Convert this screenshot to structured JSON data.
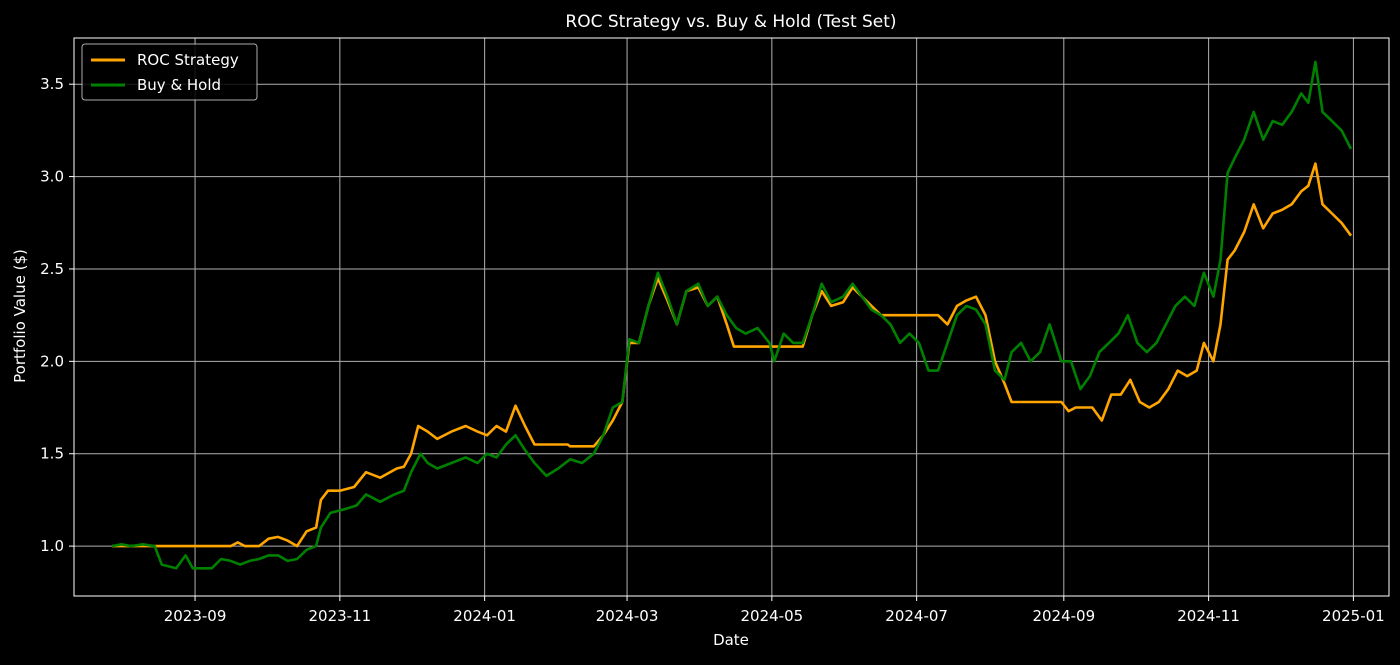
{
  "chart_data": {
    "type": "line",
    "title": "ROC Strategy vs. Buy & Hold (Test Set)",
    "xlabel": "Date",
    "ylabel": "Portfolio Value ($)",
    "x_ticks": [
      {
        "date": "2023-09-01",
        "label": "2023-09"
      },
      {
        "date": "2023-11-01",
        "label": "2023-11"
      },
      {
        "date": "2024-01-01",
        "label": "2024-01"
      },
      {
        "date": "2024-03-01",
        "label": "2024-03"
      },
      {
        "date": "2024-05-01",
        "label": "2024-05"
      },
      {
        "date": "2024-07-01",
        "label": "2024-07"
      },
      {
        "date": "2024-09-01",
        "label": "2024-09"
      },
      {
        "date": "2024-11-01",
        "label": "2024-11"
      },
      {
        "date": "2025-01-01",
        "label": "2025-01"
      }
    ],
    "y_ticks": [
      {
        "value": 1.0,
        "label": "1.0"
      },
      {
        "value": 1.5,
        "label": "1.5"
      },
      {
        "value": 2.0,
        "label": "2.0"
      },
      {
        "value": 2.5,
        "label": "2.5"
      },
      {
        "value": 3.0,
        "label": "3.0"
      },
      {
        "value": 3.5,
        "label": "3.5"
      }
    ],
    "xlim": [
      "2023-07-12",
      "2025-01-16"
    ],
    "ylim": [
      0.73,
      3.75
    ],
    "grid": true,
    "legend_position": "top-left",
    "colors": {
      "background": "#000000",
      "axes": "#ffffff",
      "grid": "#b0b0b0"
    },
    "series": [
      {
        "name": "ROC Strategy",
        "color": "#ffa500",
        "points": [
          [
            "2023-07-28",
            1.0
          ],
          [
            "2023-08-05",
            1.0
          ],
          [
            "2023-08-20",
            1.0
          ],
          [
            "2023-09-05",
            1.0
          ],
          [
            "2023-09-16",
            1.0
          ],
          [
            "2023-09-19",
            1.02
          ],
          [
            "2023-09-22",
            1.0
          ],
          [
            "2023-09-28",
            1.0
          ],
          [
            "2023-10-02",
            1.04
          ],
          [
            "2023-10-06",
            1.05
          ],
          [
            "2023-10-10",
            1.03
          ],
          [
            "2023-10-14",
            1.0
          ],
          [
            "2023-10-18",
            1.08
          ],
          [
            "2023-10-22",
            1.1
          ],
          [
            "2023-10-24",
            1.25
          ],
          [
            "2023-10-27",
            1.3
          ],
          [
            "2023-11-01",
            1.3
          ],
          [
            "2023-11-07",
            1.32
          ],
          [
            "2023-11-12",
            1.4
          ],
          [
            "2023-11-18",
            1.37
          ],
          [
            "2023-11-25",
            1.42
          ],
          [
            "2023-11-28",
            1.43
          ],
          [
            "2023-12-01",
            1.5
          ],
          [
            "2023-12-04",
            1.65
          ],
          [
            "2023-12-08",
            1.62
          ],
          [
            "2023-12-12",
            1.58
          ],
          [
            "2023-12-18",
            1.62
          ],
          [
            "2023-12-24",
            1.65
          ],
          [
            "2023-12-29",
            1.62
          ],
          [
            "2024-01-02",
            1.6
          ],
          [
            "2024-01-06",
            1.65
          ],
          [
            "2024-01-10",
            1.62
          ],
          [
            "2024-01-14",
            1.76
          ],
          [
            "2024-01-18",
            1.65
          ],
          [
            "2024-01-22",
            1.55
          ],
          [
            "2024-02-05",
            1.55
          ],
          [
            "2024-02-06",
            1.54
          ],
          [
            "2024-02-16",
            1.54
          ],
          [
            "2024-02-20",
            1.6
          ],
          [
            "2024-02-24",
            1.68
          ],
          [
            "2024-02-28",
            1.78
          ],
          [
            "2024-03-02",
            2.1
          ],
          [
            "2024-03-06",
            2.1
          ],
          [
            "2024-03-10",
            2.3
          ],
          [
            "2024-03-14",
            2.45
          ],
          [
            "2024-03-18",
            2.33
          ],
          [
            "2024-03-22",
            2.2
          ],
          [
            "2024-03-26",
            2.38
          ],
          [
            "2024-03-31",
            2.4
          ],
          [
            "2024-04-04",
            2.3
          ],
          [
            "2024-04-08",
            2.35
          ],
          [
            "2024-04-12",
            2.2
          ],
          [
            "2024-04-15",
            2.08
          ],
          [
            "2024-05-14",
            2.08
          ],
          [
            "2024-05-18",
            2.25
          ],
          [
            "2024-05-22",
            2.38
          ],
          [
            "2024-05-26",
            2.3
          ],
          [
            "2024-05-31",
            2.32
          ],
          [
            "2024-06-04",
            2.4
          ],
          [
            "2024-06-08",
            2.35
          ],
          [
            "2024-06-12",
            2.3
          ],
          [
            "2024-06-16",
            2.25
          ],
          [
            "2024-06-20",
            2.25
          ],
          [
            "2024-07-10",
            2.25
          ],
          [
            "2024-07-14",
            2.2
          ],
          [
            "2024-07-18",
            2.3
          ],
          [
            "2024-07-22",
            2.33
          ],
          [
            "2024-07-26",
            2.35
          ],
          [
            "2024-07-30",
            2.25
          ],
          [
            "2024-08-03",
            2.0
          ],
          [
            "2024-08-07",
            1.88
          ],
          [
            "2024-08-10",
            1.78
          ],
          [
            "2024-08-31",
            1.78
          ],
          [
            "2024-09-03",
            1.73
          ],
          [
            "2024-09-06",
            1.75
          ],
          [
            "2024-09-13",
            1.75
          ],
          [
            "2024-09-17",
            1.68
          ],
          [
            "2024-09-21",
            1.82
          ],
          [
            "2024-09-25",
            1.82
          ],
          [
            "2024-09-29",
            1.9
          ],
          [
            "2024-10-03",
            1.78
          ],
          [
            "2024-10-07",
            1.75
          ],
          [
            "2024-10-11",
            1.78
          ],
          [
            "2024-10-15",
            1.85
          ],
          [
            "2024-10-19",
            1.95
          ],
          [
            "2024-10-23",
            1.92
          ],
          [
            "2024-10-27",
            1.95
          ],
          [
            "2024-10-30",
            2.1
          ],
          [
            "2024-11-03",
            2.0
          ],
          [
            "2024-11-06",
            2.2
          ],
          [
            "2024-11-09",
            2.55
          ],
          [
            "2024-11-12",
            2.6
          ],
          [
            "2024-11-16",
            2.7
          ],
          [
            "2024-11-20",
            2.85
          ],
          [
            "2024-11-24",
            2.72
          ],
          [
            "2024-11-28",
            2.8
          ],
          [
            "2024-12-02",
            2.82
          ],
          [
            "2024-12-06",
            2.85
          ],
          [
            "2024-12-10",
            2.92
          ],
          [
            "2024-12-13",
            2.95
          ],
          [
            "2024-12-16",
            3.07
          ],
          [
            "2024-12-19",
            2.85
          ],
          [
            "2024-12-23",
            2.8
          ],
          [
            "2024-12-27",
            2.75
          ],
          [
            "2024-12-31",
            2.68
          ]
        ]
      },
      {
        "name": "Buy & Hold",
        "color": "#008000",
        "points": [
          [
            "2023-07-28",
            1.0
          ],
          [
            "2023-08-01",
            1.01
          ],
          [
            "2023-08-05",
            1.0
          ],
          [
            "2023-08-10",
            1.01
          ],
          [
            "2023-08-15",
            1.0
          ],
          [
            "2023-08-18",
            0.9
          ],
          [
            "2023-08-24",
            0.88
          ],
          [
            "2023-08-28",
            0.95
          ],
          [
            "2023-08-31",
            0.88
          ],
          [
            "2023-09-08",
            0.88
          ],
          [
            "2023-09-12",
            0.93
          ],
          [
            "2023-09-16",
            0.92
          ],
          [
            "2023-09-20",
            0.9
          ],
          [
            "2023-09-24",
            0.92
          ],
          [
            "2023-09-28",
            0.93
          ],
          [
            "2023-10-02",
            0.95
          ],
          [
            "2023-10-06",
            0.95
          ],
          [
            "2023-10-10",
            0.92
          ],
          [
            "2023-10-14",
            0.93
          ],
          [
            "2023-10-18",
            0.98
          ],
          [
            "2023-10-22",
            1.0
          ],
          [
            "2023-10-24",
            1.1
          ],
          [
            "2023-10-28",
            1.18
          ],
          [
            "2023-11-03",
            1.2
          ],
          [
            "2023-11-08",
            1.22
          ],
          [
            "2023-11-12",
            1.28
          ],
          [
            "2023-11-18",
            1.24
          ],
          [
            "2023-11-24",
            1.28
          ],
          [
            "2023-11-28",
            1.3
          ],
          [
            "2023-12-01",
            1.4
          ],
          [
            "2023-12-05",
            1.5
          ],
          [
            "2023-12-08",
            1.45
          ],
          [
            "2023-12-12",
            1.42
          ],
          [
            "2023-12-18",
            1.45
          ],
          [
            "2023-12-24",
            1.48
          ],
          [
            "2023-12-29",
            1.45
          ],
          [
            "2024-01-02",
            1.5
          ],
          [
            "2024-01-06",
            1.48
          ],
          [
            "2024-01-10",
            1.55
          ],
          [
            "2024-01-14",
            1.6
          ],
          [
            "2024-01-18",
            1.52
          ],
          [
            "2024-01-22",
            1.45
          ],
          [
            "2024-01-27",
            1.38
          ],
          [
            "2024-02-01",
            1.42
          ],
          [
            "2024-02-06",
            1.47
          ],
          [
            "2024-02-11",
            1.45
          ],
          [
            "2024-02-16",
            1.5
          ],
          [
            "2024-02-20",
            1.6
          ],
          [
            "2024-02-24",
            1.75
          ],
          [
            "2024-02-28",
            1.78
          ],
          [
            "2024-03-02",
            2.12
          ],
          [
            "2024-03-06",
            2.1
          ],
          [
            "2024-03-10",
            2.3
          ],
          [
            "2024-03-14",
            2.48
          ],
          [
            "2024-03-18",
            2.35
          ],
          [
            "2024-03-22",
            2.2
          ],
          [
            "2024-03-26",
            2.38
          ],
          [
            "2024-03-31",
            2.42
          ],
          [
            "2024-04-04",
            2.3
          ],
          [
            "2024-04-08",
            2.35
          ],
          [
            "2024-04-12",
            2.25
          ],
          [
            "2024-04-16",
            2.18
          ],
          [
            "2024-04-20",
            2.15
          ],
          [
            "2024-04-25",
            2.18
          ],
          [
            "2024-04-30",
            2.1
          ],
          [
            "2024-05-02",
            2.0
          ],
          [
            "2024-05-06",
            2.15
          ],
          [
            "2024-05-10",
            2.1
          ],
          [
            "2024-05-14",
            2.1
          ],
          [
            "2024-05-18",
            2.25
          ],
          [
            "2024-05-22",
            2.42
          ],
          [
            "2024-05-26",
            2.32
          ],
          [
            "2024-05-31",
            2.35
          ],
          [
            "2024-06-04",
            2.42
          ],
          [
            "2024-06-08",
            2.35
          ],
          [
            "2024-06-12",
            2.28
          ],
          [
            "2024-06-16",
            2.25
          ],
          [
            "2024-06-20",
            2.2
          ],
          [
            "2024-06-24",
            2.1
          ],
          [
            "2024-06-28",
            2.15
          ],
          [
            "2024-07-02",
            2.1
          ],
          [
            "2024-07-06",
            1.95
          ],
          [
            "2024-07-10",
            1.95
          ],
          [
            "2024-07-14",
            2.1
          ],
          [
            "2024-07-18",
            2.25
          ],
          [
            "2024-07-22",
            2.3
          ],
          [
            "2024-07-26",
            2.28
          ],
          [
            "2024-07-30",
            2.2
          ],
          [
            "2024-08-03",
            1.95
          ],
          [
            "2024-08-07",
            1.9
          ],
          [
            "2024-08-10",
            2.05
          ],
          [
            "2024-08-14",
            2.1
          ],
          [
            "2024-08-18",
            2.0
          ],
          [
            "2024-08-22",
            2.05
          ],
          [
            "2024-08-26",
            2.2
          ],
          [
            "2024-08-31",
            2.0
          ],
          [
            "2024-09-04",
            2.0
          ],
          [
            "2024-09-08",
            1.85
          ],
          [
            "2024-09-12",
            1.92
          ],
          [
            "2024-09-16",
            2.05
          ],
          [
            "2024-09-20",
            2.1
          ],
          [
            "2024-09-24",
            2.15
          ],
          [
            "2024-09-28",
            2.25
          ],
          [
            "2024-10-02",
            2.1
          ],
          [
            "2024-10-06",
            2.05
          ],
          [
            "2024-10-10",
            2.1
          ],
          [
            "2024-10-14",
            2.2
          ],
          [
            "2024-10-18",
            2.3
          ],
          [
            "2024-10-22",
            2.35
          ],
          [
            "2024-10-26",
            2.3
          ],
          [
            "2024-10-30",
            2.48
          ],
          [
            "2024-11-03",
            2.35
          ],
          [
            "2024-11-06",
            2.55
          ],
          [
            "2024-11-09",
            3.02
          ],
          [
            "2024-11-12",
            3.1
          ],
          [
            "2024-11-16",
            3.2
          ],
          [
            "2024-11-20",
            3.35
          ],
          [
            "2024-11-24",
            3.2
          ],
          [
            "2024-11-28",
            3.3
          ],
          [
            "2024-12-02",
            3.28
          ],
          [
            "2024-12-06",
            3.35
          ],
          [
            "2024-12-10",
            3.45
          ],
          [
            "2024-12-13",
            3.4
          ],
          [
            "2024-12-16",
            3.62
          ],
          [
            "2024-12-19",
            3.35
          ],
          [
            "2024-12-23",
            3.3
          ],
          [
            "2024-12-27",
            3.25
          ],
          [
            "2024-12-31",
            3.15
          ]
        ]
      }
    ]
  }
}
